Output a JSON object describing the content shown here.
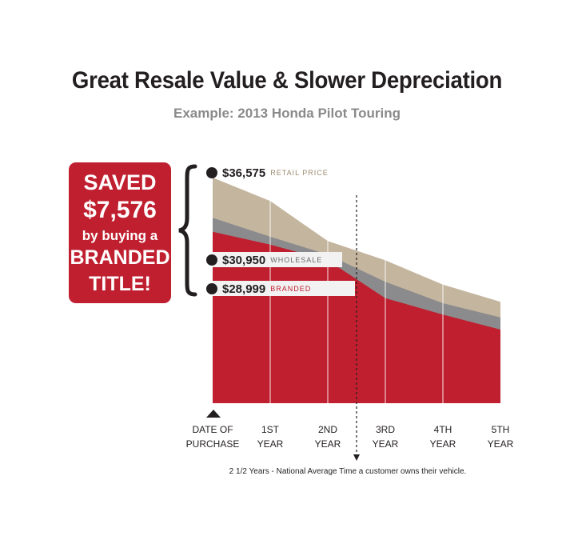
{
  "title": "Great Resale Value & Slower Depreciation",
  "subtitle": "Example: 2013 Honda Pilot Touring",
  "badge": {
    "line1": "SAVED",
    "line2": "$7,576",
    "line3": "by buying a",
    "line4": "BRANDED",
    "line5": "TITLE!"
  },
  "price_labels": {
    "retail": {
      "amount": "$36,575",
      "label": "RETAIL PRICE"
    },
    "wholesale": {
      "amount": "$30,950",
      "label": "WHOLESALE"
    },
    "branded": {
      "amount": "$28,999",
      "label": "BRANDED"
    }
  },
  "note": "2 1/2 Years - National Average Time a customer owns their vehicle.",
  "colors": {
    "retail": "#c4b59e",
    "wholesale": "#8b8b8d",
    "branded": "#c01f2f",
    "label_retail": "#9a8a6e",
    "label_wholesale": "#6a6a6a",
    "label_branded": "#c01f2f"
  },
  "chart_data": {
    "type": "area",
    "categories": [
      "DATE OF PURCHASE",
      "1ST YEAR",
      "2ND YEAR",
      "3RD YEAR",
      "4TH YEAR",
      "5TH YEAR"
    ],
    "x": [
      0,
      1,
      2,
      3,
      4,
      5
    ],
    "series": [
      {
        "name": "RETAIL PRICE",
        "values": [
          36575,
          33300,
          27700,
          25000,
          21600,
          19200
        ]
      },
      {
        "name": "WHOLESALE",
        "values": [
          30950,
          28300,
          25800,
          22000,
          19000,
          17000
        ]
      },
      {
        "name": "BRANDED",
        "values": [
          28999,
          27200,
          25000,
          19700,
          17400,
          15300
        ]
      }
    ],
    "ylim": [
      5000,
      36575
    ],
    "marker_x": 2.5,
    "grid": false,
    "legend": "none"
  }
}
